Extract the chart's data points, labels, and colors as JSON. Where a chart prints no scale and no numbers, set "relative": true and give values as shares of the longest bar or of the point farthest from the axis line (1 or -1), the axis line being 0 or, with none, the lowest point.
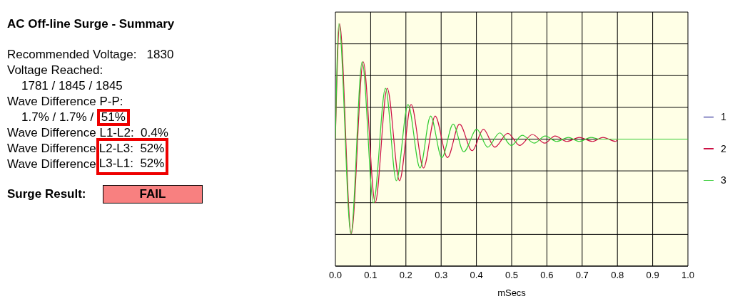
{
  "chart_data": [
    {
      "type": "other",
      "title": "AC Off-line Surge - Summary",
      "annotations": [
        "Recommended Voltage:   1830",
        "Voltage Reached:",
        "1781 / 1845 / 1845",
        "Wave Difference P-P:",
        "1.7% / 1.7% /",
        "51%",
        "Wave Difference L1-L2:  0.4%",
        "Wave Difference",
        "L2-L3:  52%",
        "Wave Difference",
        "L3-L1:  52%",
        "Surge Result:",
        "FAIL"
      ]
    },
    {
      "type": "line",
      "xlabel": "mSecs",
      "relative": true,
      "xlim": [
        0,
        1
      ],
      "xticks": [
        {
          "value": 0,
          "label": "0.0"
        },
        0.1,
        0.2,
        0.3,
        0.4,
        0.5,
        0.6,
        0.7,
        0.8,
        0.9,
        {
          "value": 1,
          "label": "1.0"
        }
      ],
      "grid": true,
      "legend": "right",
      "line_style": "solid",
      "series": [
        {
          "name": "1",
          "color": "#000080"
        },
        {
          "name": "2",
          "color": "#cc1144",
          "x": [
            0,
            0.012,
            0.045,
            0.079,
            0.113,
            0.147,
            0.182,
            0.215,
            0.25,
            0.283,
            0.318,
            0.352,
            0.388,
            0.42,
            0.452,
            0.489,
            0.523,
            0.559,
            0.594,
            0.623,
            0.657,
            0.692,
            0.729,
            0.759,
            0.795,
            0.801
          ],
          "values": [
            0,
            1.0,
            -0.82,
            0.67,
            -0.55,
            0.44,
            -0.36,
            0.3,
            -0.25,
            0.2,
            -0.16,
            0.13,
            -0.1,
            0.085,
            -0.07,
            0.05,
            -0.055,
            0.04,
            -0.035,
            0.027,
            -0.02,
            0.015,
            -0.02,
            0.015,
            -0.02,
            0
          ]
        },
        {
          "name": "3",
          "color": "#33cc33",
          "x": [
            0,
            0.01,
            0.044,
            0.076,
            0.108,
            0.142,
            0.173,
            0.206,
            0.24,
            0.27,
            0.302,
            0.334,
            0.364,
            0.401,
            0.432,
            0.466,
            0.499,
            0.53,
            0.564,
            0.595,
            0.628,
            0.661,
            0.692,
            0.725,
            0.749,
            1
          ],
          "values": [
            0,
            1.0,
            -0.82,
            0.67,
            -0.55,
            0.44,
            -0.36,
            0.3,
            -0.25,
            0.2,
            -0.16,
            0.13,
            -0.11,
            0.085,
            -0.07,
            0.054,
            -0.055,
            0.033,
            -0.035,
            0.027,
            -0.02,
            0.015,
            -0.02,
            0.015,
            0,
            0
          ]
        }
      ]
    }
  ]
}
